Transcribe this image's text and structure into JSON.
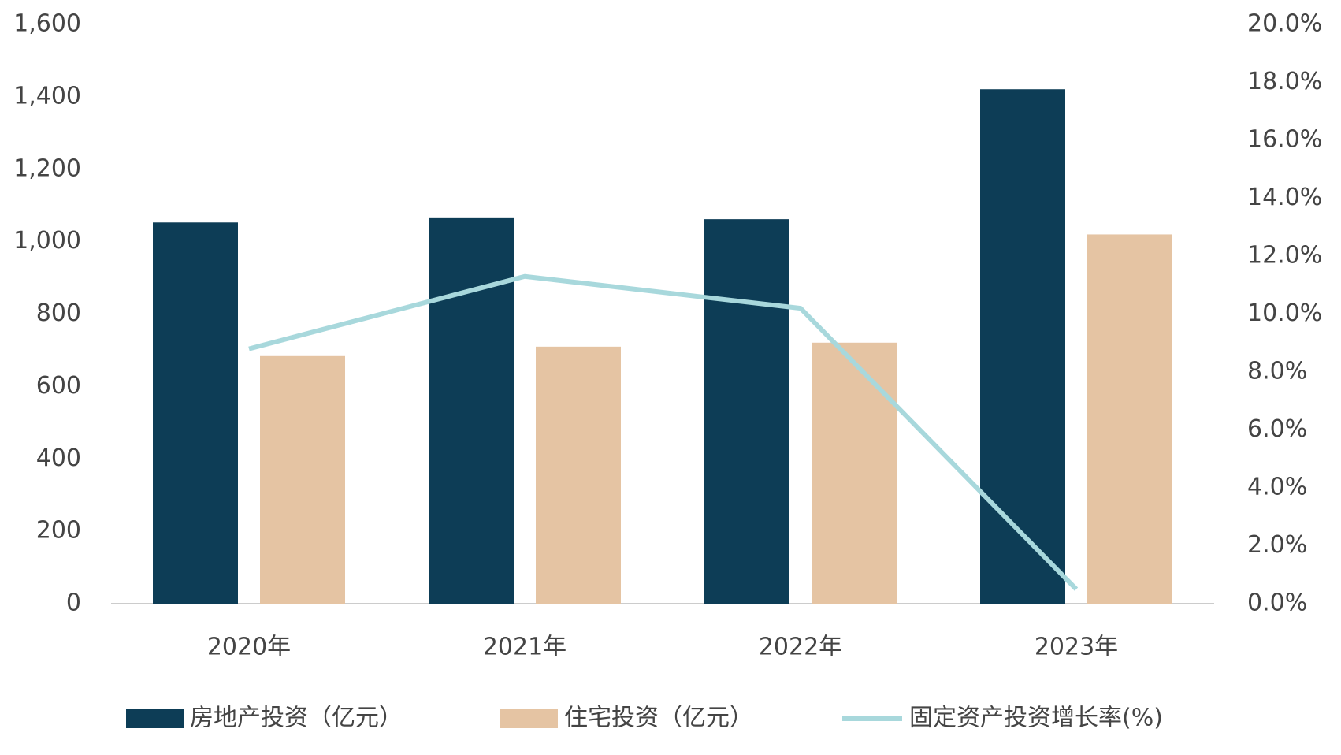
{
  "chart_data": {
    "type": "bar",
    "categories": [
      "2020年",
      "2021年",
      "2022年",
      "2023年"
    ],
    "series": [
      {
        "name": "房地产投资（亿元）",
        "color": "#0d3d56",
        "type": "bar",
        "values": [
          1053,
          1067,
          1062,
          1421
        ]
      },
      {
        "name": "住宅投资（亿元）",
        "color": "#e5c4a3",
        "type": "bar",
        "values": [
          684,
          710,
          721,
          1020
        ]
      },
      {
        "name": "固定资产投资增长率(%)",
        "color": "#a8d8dc",
        "type": "line",
        "axis": "y2",
        "values": [
          8.8,
          11.3,
          10.2,
          0.5
        ]
      }
    ],
    "ylim": [
      0,
      1600
    ],
    "yticks": [
      0,
      200,
      400,
      600,
      800,
      {
        "value": 1000,
        "label": "1,000"
      },
      {
        "value": 1200,
        "label": "1,200"
      },
      {
        "value": 1400,
        "label": "1,400"
      },
      {
        "value": 1600,
        "label": "1,600"
      }
    ],
    "y2lim": [
      0,
      20
    ],
    "y2ticks": [
      {
        "value": 0,
        "label": "0.0%"
      },
      {
        "value": 2,
        "label": "2.0%"
      },
      {
        "value": 4,
        "label": "4.0%"
      },
      {
        "value": 6,
        "label": "6.0%"
      },
      {
        "value": 8,
        "label": "8.0%"
      },
      {
        "value": 10,
        "label": "10.0%"
      },
      {
        "value": 12,
        "label": "12.0%"
      },
      {
        "value": 14,
        "label": "14.0%"
      },
      {
        "value": 16,
        "label": "16.0%"
      },
      {
        "value": 18,
        "label": "18.0%"
      },
      {
        "value": 20,
        "label": "20.0%"
      }
    ],
    "legend": "bottom",
    "grid": false
  }
}
